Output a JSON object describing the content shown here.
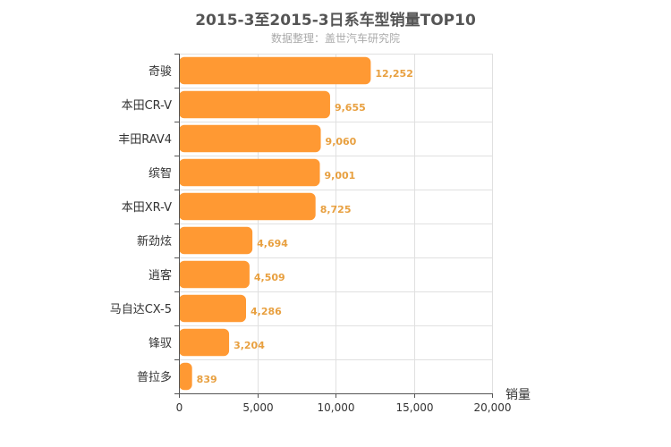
{
  "chart_data": {
    "type": "bar",
    "orientation": "horizontal",
    "title": "2015-3至2015-3日系车型销量TOP10",
    "subtitle": "数据整理：盖世汽车研究院",
    "xlabel": "销量",
    "ylabel": "",
    "categories": [
      "奇骏",
      "本田CR-V",
      "丰田RAV4",
      "缤智",
      "本田XR-V",
      "新劲炫",
      "逍客",
      "马自达CX-5",
      "锋驭",
      "普拉多"
    ],
    "values": [
      12252,
      9655,
      9060,
      9001,
      8725,
      4694,
      4509,
      4286,
      3204,
      839
    ],
    "value_labels": [
      "12,252",
      "9,655",
      "9,060",
      "9,001",
      "8,725",
      "4,694",
      "4,509",
      "4,286",
      "3,204",
      "839"
    ],
    "xlim": [
      0,
      20000
    ],
    "x_ticks": [
      0,
      5000,
      10000,
      15000,
      20000
    ],
    "x_tick_labels": [
      "0",
      "5,000",
      "10,000",
      "15,000",
      "20,000"
    ],
    "grid": true,
    "legend": "none",
    "bar_color": "#ff9933",
    "label_color": "#e8a040"
  }
}
